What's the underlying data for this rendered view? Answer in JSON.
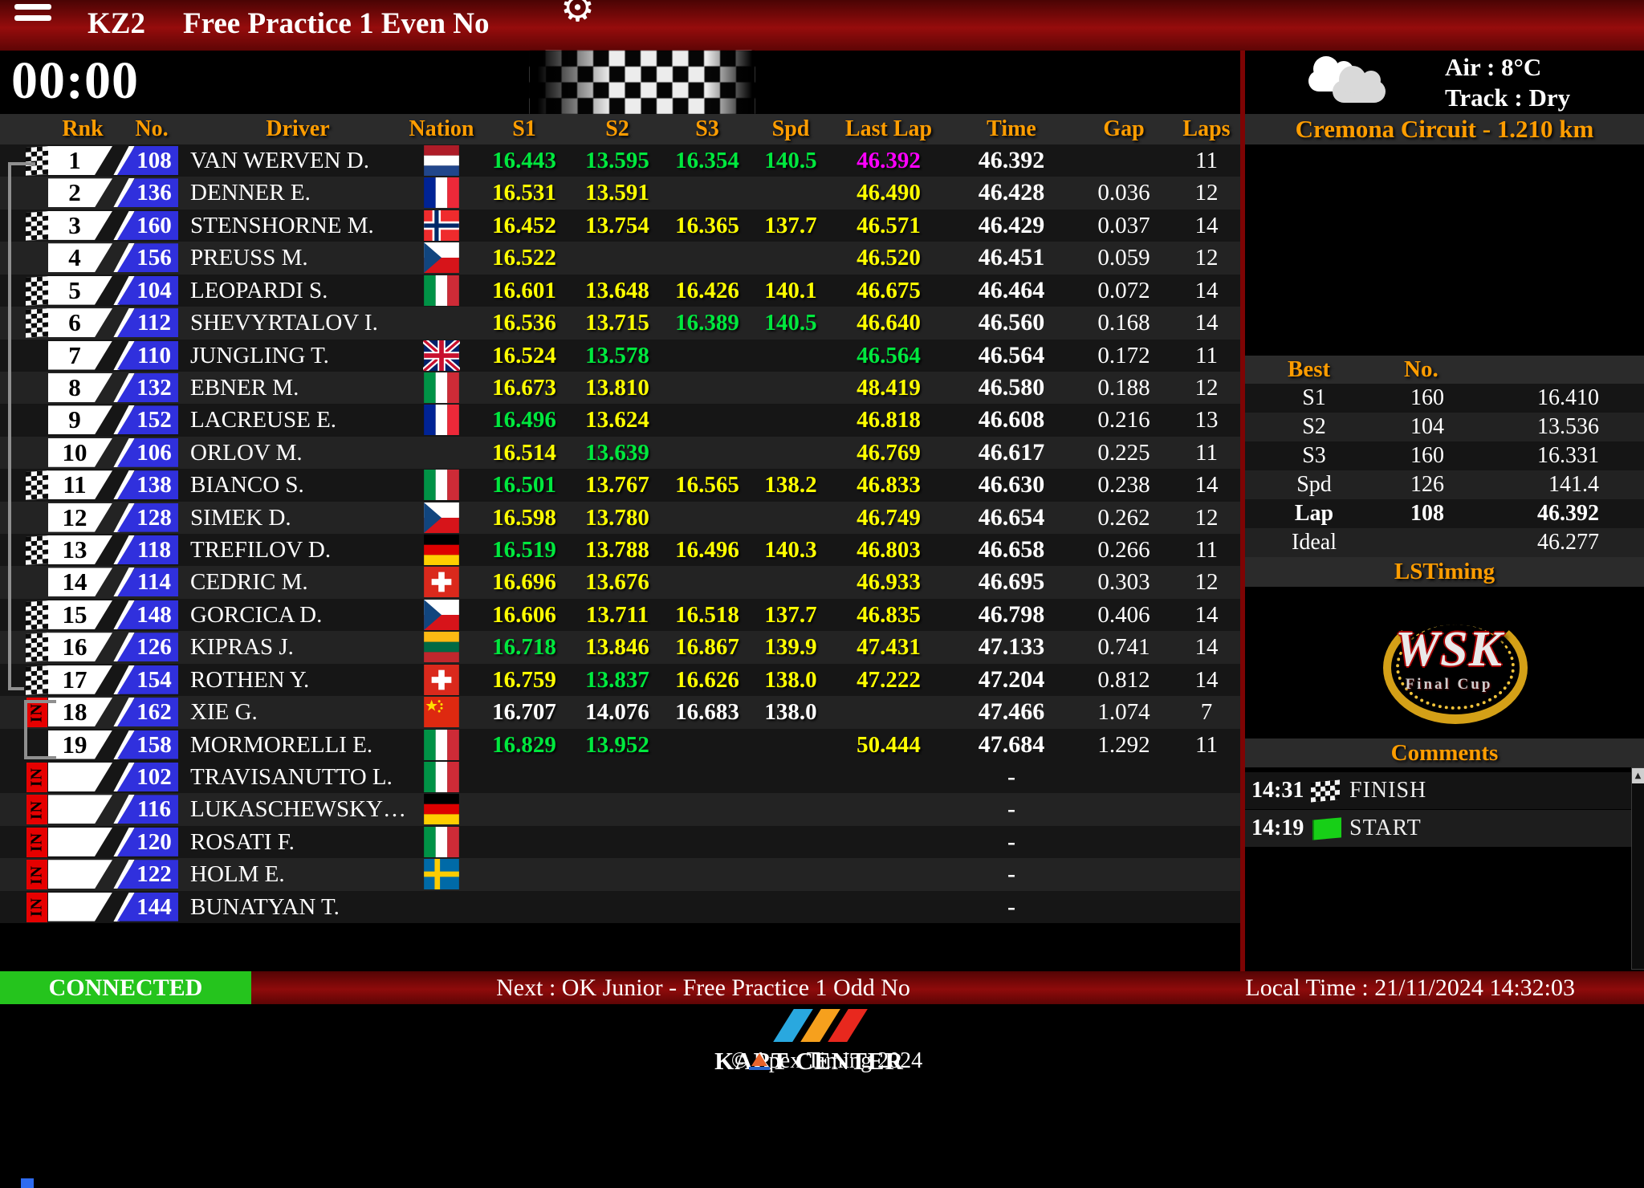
{
  "topbar": {
    "category": "KZ2",
    "session": "Free Practice 1 Even No"
  },
  "timer": {
    "value": "00:00"
  },
  "weather": {
    "air": "Air : 8°C",
    "track": "Track : Dry"
  },
  "circuit": {
    "label": "Cremona Circuit - 1.210 km"
  },
  "table": {
    "headers": [
      "Rnk",
      "No.",
      "Driver",
      "Nation",
      "S1",
      "S2",
      "S3",
      "Spd",
      "Last Lap",
      "Time",
      "Gap",
      "Laps"
    ],
    "in_label": "IN",
    "rows": [
      {
        "flag": "finish",
        "rank": "1",
        "no": "108",
        "driver": "VAN WERVEN D.",
        "nation": "nl",
        "cells": [
          [
            "16.443",
            "g"
          ],
          [
            "13.595",
            "g"
          ],
          [
            "16.354",
            "g"
          ],
          [
            "140.5",
            "g"
          ],
          [
            "46.392",
            "m"
          ]
        ],
        "time": "46.392",
        "gap": "",
        "laps": "11"
      },
      {
        "flag": "",
        "rank": "2",
        "no": "136",
        "driver": "DENNER E.",
        "nation": "fr",
        "cells": [
          [
            "16.531",
            "y"
          ],
          [
            "13.591",
            "y"
          ],
          [
            "",
            ""
          ],
          [
            "",
            ""
          ],
          [
            "46.490",
            "y"
          ]
        ],
        "time": "46.428",
        "gap": "0.036",
        "laps": "12"
      },
      {
        "flag": "finish",
        "rank": "3",
        "no": "160",
        "driver": "STENSHORNE M.",
        "nation": "no",
        "cells": [
          [
            "16.452",
            "y"
          ],
          [
            "13.754",
            "y"
          ],
          [
            "16.365",
            "y"
          ],
          [
            "137.7",
            "y"
          ],
          [
            "46.571",
            "y"
          ]
        ],
        "time": "46.429",
        "gap": "0.037",
        "laps": "14"
      },
      {
        "flag": "",
        "rank": "4",
        "no": "156",
        "driver": "PREUSS M.",
        "nation": "cz",
        "cells": [
          [
            "16.522",
            "y"
          ],
          [
            "",
            ""
          ],
          [
            "",
            ""
          ],
          [
            "",
            ""
          ],
          [
            "46.520",
            "y"
          ]
        ],
        "time": "46.451",
        "gap": "0.059",
        "laps": "12"
      },
      {
        "flag": "finish",
        "rank": "5",
        "no": "104",
        "driver": "LEOPARDI S.",
        "nation": "it",
        "cells": [
          [
            "16.601",
            "y"
          ],
          [
            "13.648",
            "y"
          ],
          [
            "16.426",
            "y"
          ],
          [
            "140.1",
            "y"
          ],
          [
            "46.675",
            "y"
          ]
        ],
        "time": "46.464",
        "gap": "0.072",
        "laps": "14"
      },
      {
        "flag": "finish",
        "rank": "6",
        "no": "112",
        "driver": "SHEVYRTALOV I.",
        "nation": "",
        "cells": [
          [
            "16.536",
            "y"
          ],
          [
            "13.715",
            "y"
          ],
          [
            "16.389",
            "g"
          ],
          [
            "140.5",
            "g"
          ],
          [
            "46.640",
            "y"
          ]
        ],
        "time": "46.560",
        "gap": "0.168",
        "laps": "14"
      },
      {
        "flag": "",
        "rank": "7",
        "no": "110",
        "driver": "JUNGLING T.",
        "nation": "gb",
        "cells": [
          [
            "16.524",
            "y"
          ],
          [
            "13.578",
            "g"
          ],
          [
            "",
            ""
          ],
          [
            "",
            ""
          ],
          [
            "46.564",
            "g"
          ]
        ],
        "time": "46.564",
        "gap": "0.172",
        "laps": "11"
      },
      {
        "flag": "",
        "rank": "8",
        "no": "132",
        "driver": "EBNER M.",
        "nation": "it",
        "cells": [
          [
            "16.673",
            "y"
          ],
          [
            "13.810",
            "y"
          ],
          [
            "",
            ""
          ],
          [
            "",
            ""
          ],
          [
            "48.419",
            "y"
          ]
        ],
        "time": "46.580",
        "gap": "0.188",
        "laps": "12"
      },
      {
        "flag": "",
        "rank": "9",
        "no": "152",
        "driver": "LACREUSE E.",
        "nation": "fr",
        "cells": [
          [
            "16.496",
            "g"
          ],
          [
            "13.624",
            "y"
          ],
          [
            "",
            ""
          ],
          [
            "",
            ""
          ],
          [
            "46.818",
            "y"
          ]
        ],
        "time": "46.608",
        "gap": "0.216",
        "laps": "13"
      },
      {
        "flag": "",
        "rank": "10",
        "no": "106",
        "driver": "ORLOV M.",
        "nation": "",
        "cells": [
          [
            "16.514",
            "y"
          ],
          [
            "13.639",
            "g"
          ],
          [
            "",
            ""
          ],
          [
            "",
            ""
          ],
          [
            "46.769",
            "y"
          ]
        ],
        "time": "46.617",
        "gap": "0.225",
        "laps": "11"
      },
      {
        "flag": "finish",
        "rank": "11",
        "no": "138",
        "driver": "BIANCO S.",
        "nation": "it",
        "cells": [
          [
            "16.501",
            "g"
          ],
          [
            "13.767",
            "y"
          ],
          [
            "16.565",
            "y"
          ],
          [
            "138.2",
            "y"
          ],
          [
            "46.833",
            "y"
          ]
        ],
        "time": "46.630",
        "gap": "0.238",
        "laps": "14"
      },
      {
        "flag": "",
        "rank": "12",
        "no": "128",
        "driver": "SIMEK D.",
        "nation": "cz",
        "cells": [
          [
            "16.598",
            "y"
          ],
          [
            "13.780",
            "y"
          ],
          [
            "",
            ""
          ],
          [
            "",
            ""
          ],
          [
            "46.749",
            "y"
          ]
        ],
        "time": "46.654",
        "gap": "0.262",
        "laps": "12"
      },
      {
        "flag": "finish",
        "rank": "13",
        "no": "118",
        "driver": "TREFILOV D.",
        "nation": "de",
        "cells": [
          [
            "16.519",
            "g"
          ],
          [
            "13.788",
            "y"
          ],
          [
            "16.496",
            "y"
          ],
          [
            "140.3",
            "y"
          ],
          [
            "46.803",
            "y"
          ]
        ],
        "time": "46.658",
        "gap": "0.266",
        "laps": "11"
      },
      {
        "flag": "",
        "rank": "14",
        "no": "114",
        "driver": "CEDRIC M.",
        "nation": "ch",
        "cells": [
          [
            "16.696",
            "y"
          ],
          [
            "13.676",
            "y"
          ],
          [
            "",
            ""
          ],
          [
            "",
            ""
          ],
          [
            "46.933",
            "y"
          ]
        ],
        "time": "46.695",
        "gap": "0.303",
        "laps": "12"
      },
      {
        "flag": "finish",
        "rank": "15",
        "no": "148",
        "driver": "GORCICA D.",
        "nation": "cz",
        "cells": [
          [
            "16.606",
            "y"
          ],
          [
            "13.711",
            "y"
          ],
          [
            "16.518",
            "y"
          ],
          [
            "137.7",
            "y"
          ],
          [
            "46.835",
            "y"
          ]
        ],
        "time": "46.798",
        "gap": "0.406",
        "laps": "14"
      },
      {
        "flag": "finish",
        "rank": "16",
        "no": "126",
        "driver": "KIPRAS J.",
        "nation": "lt",
        "cells": [
          [
            "16.718",
            "g"
          ],
          [
            "13.846",
            "y"
          ],
          [
            "16.867",
            "y"
          ],
          [
            "139.9",
            "y"
          ],
          [
            "47.431",
            "y"
          ]
        ],
        "time": "47.133",
        "gap": "0.741",
        "laps": "14"
      },
      {
        "flag": "finish",
        "rank": "17",
        "no": "154",
        "driver": "ROTHEN Y.",
        "nation": "ch",
        "cells": [
          [
            "16.759",
            "y"
          ],
          [
            "13.837",
            "g"
          ],
          [
            "16.626",
            "y"
          ],
          [
            "138.0",
            "y"
          ],
          [
            "47.222",
            "y"
          ]
        ],
        "time": "47.204",
        "gap": "0.812",
        "laps": "14"
      },
      {
        "flag": "in",
        "rank": "18",
        "no": "162",
        "driver": "XIE G.",
        "nation": "cn",
        "cells": [
          [
            "16.707",
            "w"
          ],
          [
            "14.076",
            "w"
          ],
          [
            "16.683",
            "w"
          ],
          [
            "138.0",
            "w"
          ],
          [
            "",
            ""
          ]
        ],
        "time": "47.466",
        "gap": "1.074",
        "laps": "7"
      },
      {
        "flag": "",
        "rank": "19",
        "no": "158",
        "driver": "MORMORELLI E.",
        "nation": "it",
        "cells": [
          [
            "16.829",
            "g"
          ],
          [
            "13.952",
            "g"
          ],
          [
            "",
            ""
          ],
          [
            "",
            ""
          ],
          [
            "50.444",
            "y"
          ]
        ],
        "time": "47.684",
        "gap": "1.292",
        "laps": "11"
      },
      {
        "flag": "in",
        "rank": "",
        "no": "102",
        "driver": "TRAVISANUTTO L.",
        "nation": "it",
        "cells": [
          [
            "",
            ""
          ],
          [
            "",
            ""
          ],
          [
            "",
            ""
          ],
          [
            "",
            ""
          ],
          [
            "",
            ""
          ]
        ],
        "time": "-",
        "gap": "",
        "laps": ""
      },
      {
        "flag": "in",
        "rank": "",
        "no": "116",
        "driver": "LUKASCHEWSKY…",
        "nation": "de",
        "cells": [
          [
            "",
            ""
          ],
          [
            "",
            ""
          ],
          [
            "",
            ""
          ],
          [
            "",
            ""
          ],
          [
            "",
            ""
          ]
        ],
        "time": "-",
        "gap": "",
        "laps": ""
      },
      {
        "flag": "in",
        "rank": "",
        "no": "120",
        "driver": "ROSATI F.",
        "nation": "it",
        "cells": [
          [
            "",
            ""
          ],
          [
            "",
            ""
          ],
          [
            "",
            ""
          ],
          [
            "",
            ""
          ],
          [
            "",
            ""
          ]
        ],
        "time": "-",
        "gap": "",
        "laps": ""
      },
      {
        "flag": "in",
        "rank": "",
        "no": "122",
        "driver": "HOLM E.",
        "nation": "se",
        "cells": [
          [
            "",
            ""
          ],
          [
            "",
            ""
          ],
          [
            "",
            ""
          ],
          [
            "",
            ""
          ],
          [
            "",
            ""
          ]
        ],
        "time": "-",
        "gap": "",
        "laps": ""
      },
      {
        "flag": "in",
        "rank": "",
        "no": "144",
        "driver": "BUNATYAN T.",
        "nation": "",
        "cells": [
          [
            "",
            ""
          ],
          [
            "",
            ""
          ],
          [
            "",
            ""
          ],
          [
            "",
            ""
          ],
          [
            "",
            ""
          ]
        ],
        "time": "-",
        "gap": "",
        "laps": ""
      }
    ]
  },
  "best": {
    "title": "Best",
    "no_header": "No.",
    "rows": [
      {
        "label": "S1",
        "no": "160",
        "value": "16.410",
        "bold": false
      },
      {
        "label": "S2",
        "no": "104",
        "value": "13.536",
        "bold": false
      },
      {
        "label": "S3",
        "no": "160",
        "value": "16.331",
        "bold": false
      },
      {
        "label": "Spd",
        "no": "126",
        "value": "141.4",
        "bold": false
      },
      {
        "label": "Lap",
        "no": "108",
        "value": "46.392",
        "bold": true
      },
      {
        "label": "Ideal",
        "no": "",
        "value": "46.277",
        "bold": false
      }
    ]
  },
  "panels": {
    "lstiming": "LSTiming"
  },
  "wsk": {
    "title": "WSK",
    "subtitle": "Final Cup"
  },
  "comments": {
    "title": "Comments",
    "entries": [
      {
        "time": "14:31",
        "icon": "finish-flag",
        "text": "FINISH"
      },
      {
        "time": "14:19",
        "icon": "green-flag",
        "text": "START"
      }
    ]
  },
  "statusbar": {
    "connection": "CONNECTED",
    "next": "Next : OK Junior - Free Practice 1 Odd No",
    "local_time": "Local Time : 21/11/2024 14:32:03"
  },
  "footer": {
    "copyright": "© Apex Timing 2024",
    "brand": "KART CENTER"
  },
  "colors": {
    "accent_orange": "#ff9d00",
    "best_green": "#00e83e",
    "lap_yellow": "#ffff00",
    "session_best_magenta": "#ff00ff",
    "chip_blue": "#3030dd",
    "connected_green": "#25c41d",
    "bar_red": "#8f0b0b"
  }
}
